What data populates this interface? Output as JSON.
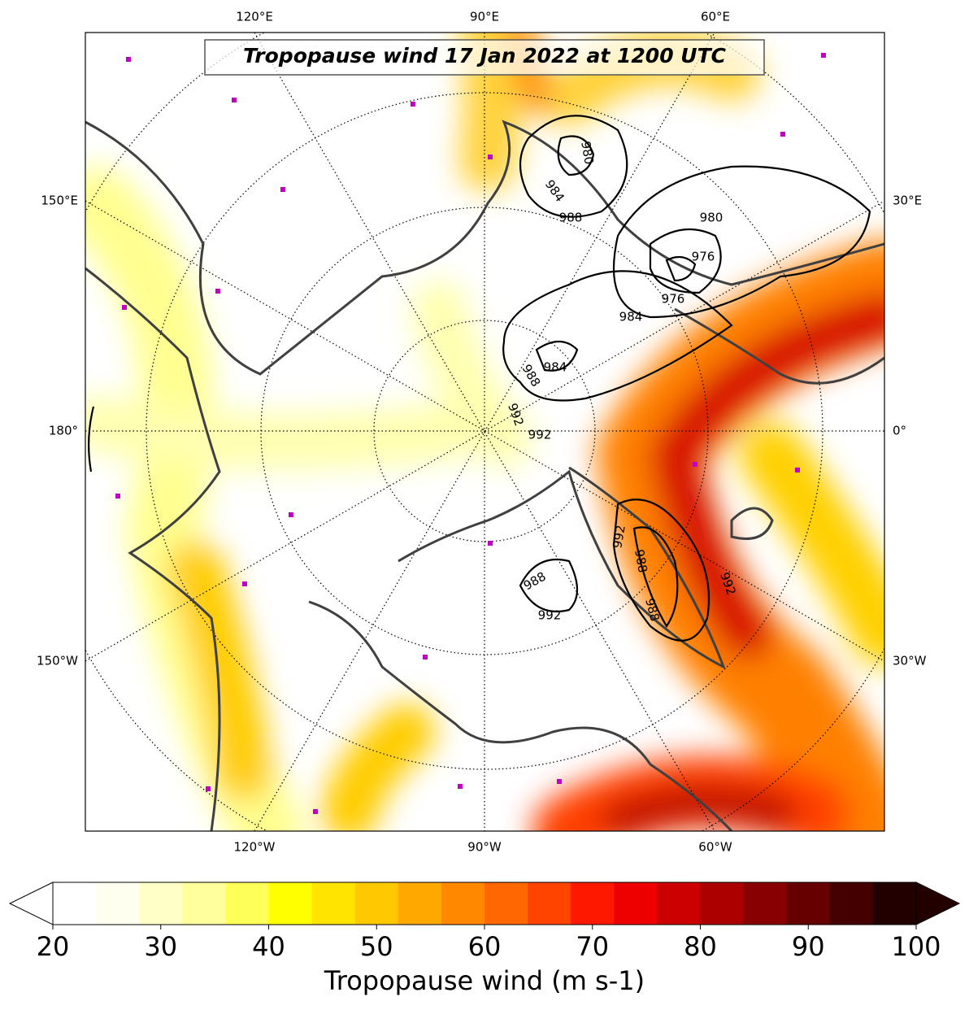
{
  "title": "Tropopause wind 17 Jan 2022 at 1200 UTC",
  "lon_labels": {
    "top": [
      "120°E",
      "90°E",
      "60°E"
    ],
    "left": [
      "150°E",
      "180°",
      "150°W"
    ],
    "right": [
      "30°E",
      "0°",
      "30°W"
    ],
    "bottom": [
      "120°W",
      "90°W",
      "60°W"
    ]
  },
  "contour_labels": [
    "980",
    "984",
    "988",
    "980",
    "976",
    "976",
    "984",
    "984",
    "988",
    "992",
    "992",
    "992",
    "988",
    "988",
    "988",
    "992",
    "992"
  ],
  "colorbar": {
    "label": "Tropopause wind (m s-1)",
    "lim": [
      20,
      100
    ],
    "ticks": [
      20,
      30,
      40,
      50,
      60,
      70,
      80,
      90,
      100
    ],
    "colors": [
      "#ffffff",
      "#fffff0",
      "#ffffc8",
      "#ffff9c",
      "#ffff5a",
      "#ffff00",
      "#ffe400",
      "#ffc800",
      "#ffa800",
      "#ff8800",
      "#ff6800",
      "#ff4400",
      "#ff1800",
      "#ee0000",
      "#cc0000",
      "#aa0000",
      "#880000",
      "#660000",
      "#440000",
      "#220000"
    ]
  }
}
